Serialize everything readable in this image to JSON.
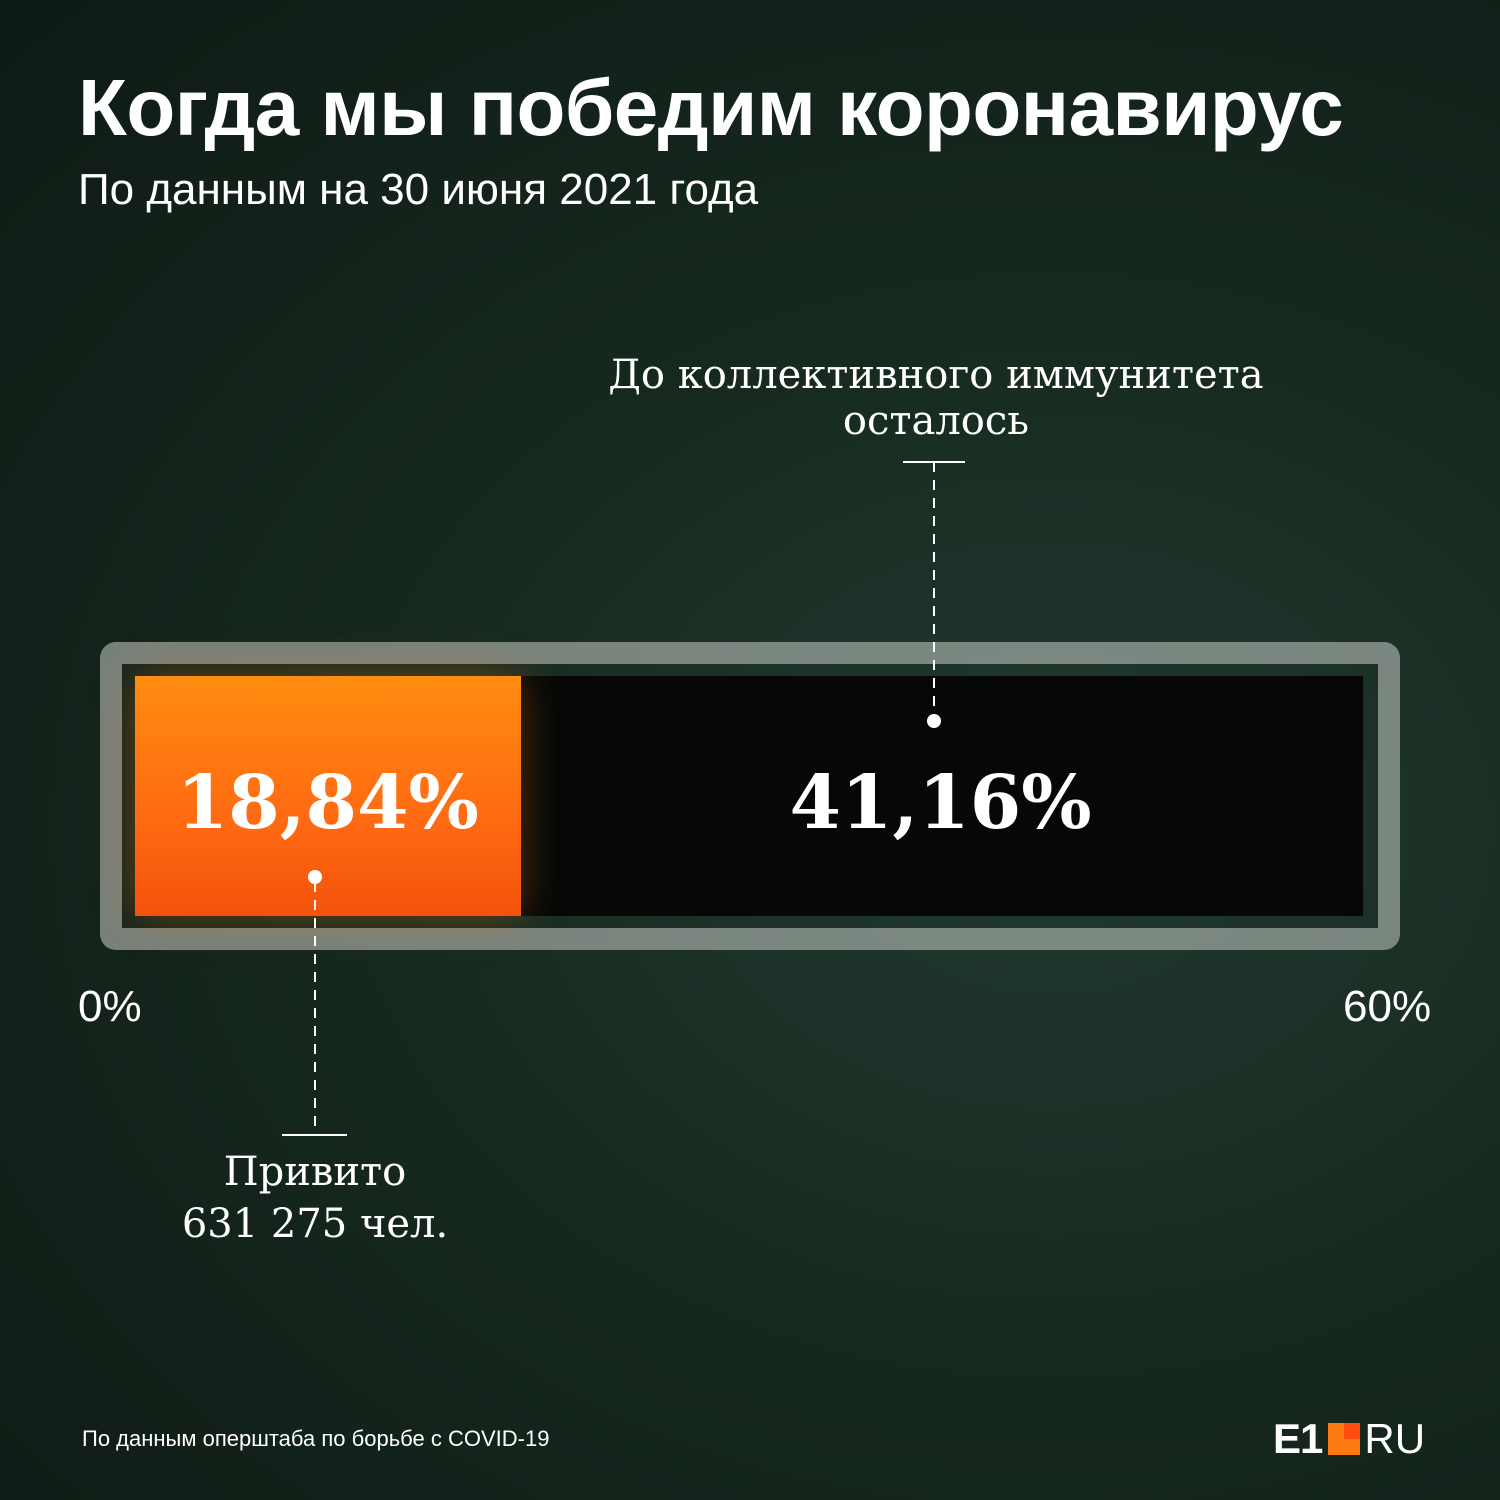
{
  "title": "Когда мы победим коронавирус",
  "subtitle": "По данным на 30 июня 2021 года",
  "chart_data": {
    "type": "bar",
    "orientation": "horizontal",
    "title": "Когда мы победим коронавирус",
    "subtitle": "По данным на 30 июня 2021 года",
    "xlim": [
      0,
      60
    ],
    "tick_labels": [
      "0%",
      "60%"
    ],
    "segments": [
      {
        "name": "Привито",
        "value": 18.84,
        "label": "18,84%",
        "color": "#ff7011"
      },
      {
        "name": "До коллективного иммунитета осталось",
        "value": 41.16,
        "label": "41,16%",
        "color": "#050807"
      }
    ]
  },
  "annotations": {
    "remaining_line1": "До коллективного иммунитета",
    "remaining_line2": "осталось",
    "vaccinated_line1": "Привито",
    "vaccinated_line2": "631 275 чел."
  },
  "footer": {
    "source": "По данным оперштаба по борьбе с COVID-19",
    "logo_e1": "E1",
    "logo_ru": "RU"
  }
}
